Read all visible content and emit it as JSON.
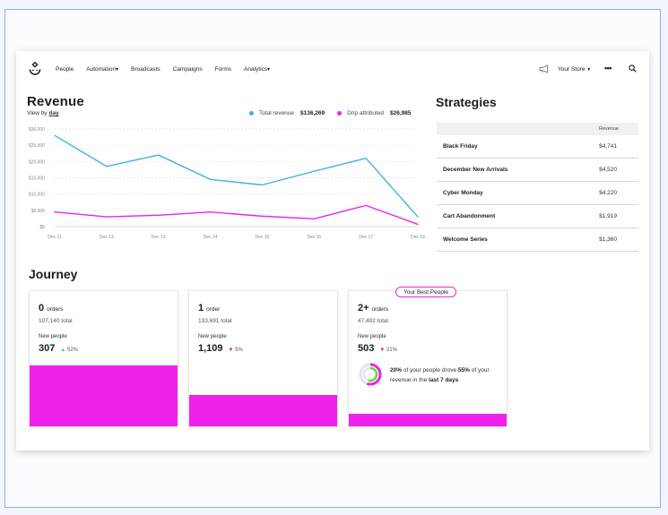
{
  "nav": {
    "links": [
      {
        "label": "People",
        "dropdown": false
      },
      {
        "label": "Automation",
        "dropdown": true
      },
      {
        "label": "Broadcasts",
        "dropdown": false
      },
      {
        "label": "Campaigns",
        "dropdown": false
      },
      {
        "label": "Forms",
        "dropdown": false
      },
      {
        "label": "Analytics",
        "dropdown": true
      }
    ],
    "store_label": "Your Store",
    "more_label": "•••"
  },
  "revenue": {
    "title": "Revenue",
    "view_by_prefix": "View by",
    "view_by_value": "day",
    "legend": [
      {
        "label": "Total revenue",
        "value": "$136,269",
        "color": "#43b3e6"
      },
      {
        "label": "Drip attributed",
        "value": "$26,985",
        "color": "#ee22ea"
      }
    ]
  },
  "chart_data": {
    "type": "line",
    "x": [
      "Dec 11",
      "Dec 12",
      "Dec 13",
      "Dec 14",
      "Dec 15",
      "Dec 16",
      "Dec 17",
      "Dec 18"
    ],
    "y_ticks": [
      "$0",
      "$5,000",
      "$10,000",
      "$15,000",
      "$20,000",
      "$25,000",
      "$30,000"
    ],
    "ylim": [
      0,
      30000
    ],
    "grid": true,
    "series": [
      {
        "name": "Total revenue",
        "color": "#43b3e6",
        "values": [
          28000,
          18500,
          22000,
          14500,
          12800,
          17000,
          21000,
          3000
        ]
      },
      {
        "name": "Drip attributed",
        "color": "#ee22ea",
        "values": [
          4500,
          3000,
          3500,
          4500,
          3200,
          2400,
          6500,
          700
        ]
      }
    ]
  },
  "strategies": {
    "title": "Strategies",
    "column_header": "Revenue",
    "rows": [
      {
        "name": "Black Friday",
        "value": "$4,741"
      },
      {
        "name": "December New Arrivals",
        "value": "$4,520"
      },
      {
        "name": "Cyber Monday",
        "value": "$4,220"
      },
      {
        "name": "Cart Abandonment",
        "value": "$1,919"
      },
      {
        "name": "Welcome Series",
        "value": "$1,360"
      }
    ]
  },
  "journey": {
    "title": "Journey",
    "badge": "Your Best People",
    "cards": [
      {
        "orders": "0",
        "orders_label": "orders",
        "total": "107,140 total",
        "new_people_label": "New people",
        "new_people": "307",
        "change_dir": "up",
        "change_arrow": "▲",
        "change": "52%",
        "bar_fraction": 0.45
      },
      {
        "orders": "1",
        "orders_label": "order",
        "total": "133,691 total",
        "new_people_label": "New people",
        "new_people": "1,109",
        "change_dir": "down",
        "change_arrow": "▼",
        "change": "5%",
        "bar_fraction": 0.23
      },
      {
        "orders": "2+",
        "orders_label": "orders",
        "total": "47,492 total",
        "new_people_label": "New people",
        "new_people": "503",
        "change_dir": "down",
        "change_arrow": "▼",
        "change": "21%",
        "bar_fraction": 0.09
      }
    ],
    "insight": {
      "pct_people": "20%",
      "text1": "of your people drove",
      "pct_revenue": "55%",
      "text2": "of",
      "text3": "your revenue in the",
      "period": "last 7 days"
    }
  }
}
